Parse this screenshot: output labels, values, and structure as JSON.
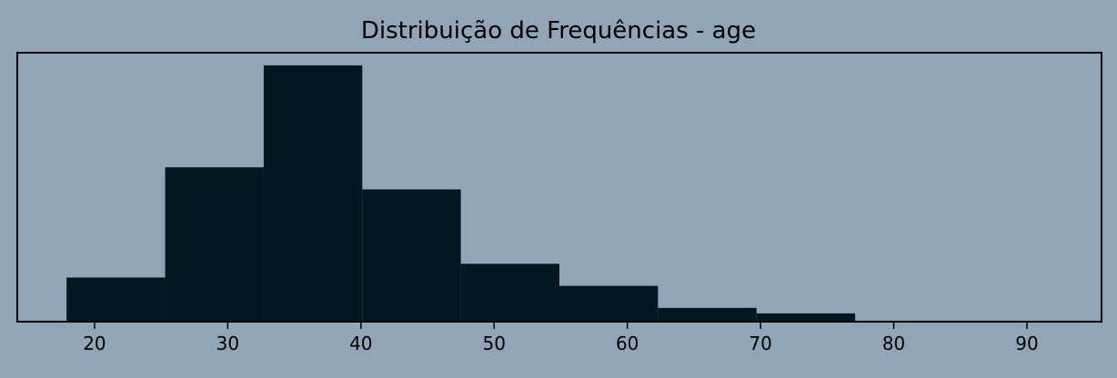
{
  "chart_data": {
    "type": "bar",
    "title": "Distribuição de Frequências - age",
    "xlabel": "",
    "ylabel": "",
    "bins": [
      {
        "start": 17.9,
        "end": 25.3,
        "count": 16
      },
      {
        "start": 25.3,
        "end": 32.7,
        "count": 56
      },
      {
        "start": 32.7,
        "end": 40.1,
        "count": 93
      },
      {
        "start": 40.1,
        "end": 47.5,
        "count": 48
      },
      {
        "start": 47.5,
        "end": 54.9,
        "count": 21
      },
      {
        "start": 54.9,
        "end": 62.3,
        "count": 13
      },
      {
        "start": 62.3,
        "end": 69.7,
        "count": 5
      },
      {
        "start": 69.7,
        "end": 77.1,
        "count": 3
      },
      {
        "start": 77.1,
        "end": 84.5,
        "count": 0
      },
      {
        "start": 84.5,
        "end": 91.9,
        "count": 0
      }
    ],
    "xlim": [
      14.2,
      95.6
    ],
    "ylim": [
      0,
      97.6
    ],
    "xticks": [
      20,
      30,
      40,
      50,
      60,
      70,
      80,
      90
    ],
    "yticks_visible": false,
    "grid": false,
    "legend": "none",
    "colors": {
      "background": "#92a5b6",
      "bar": "#011820",
      "axes": "#000000"
    }
  }
}
